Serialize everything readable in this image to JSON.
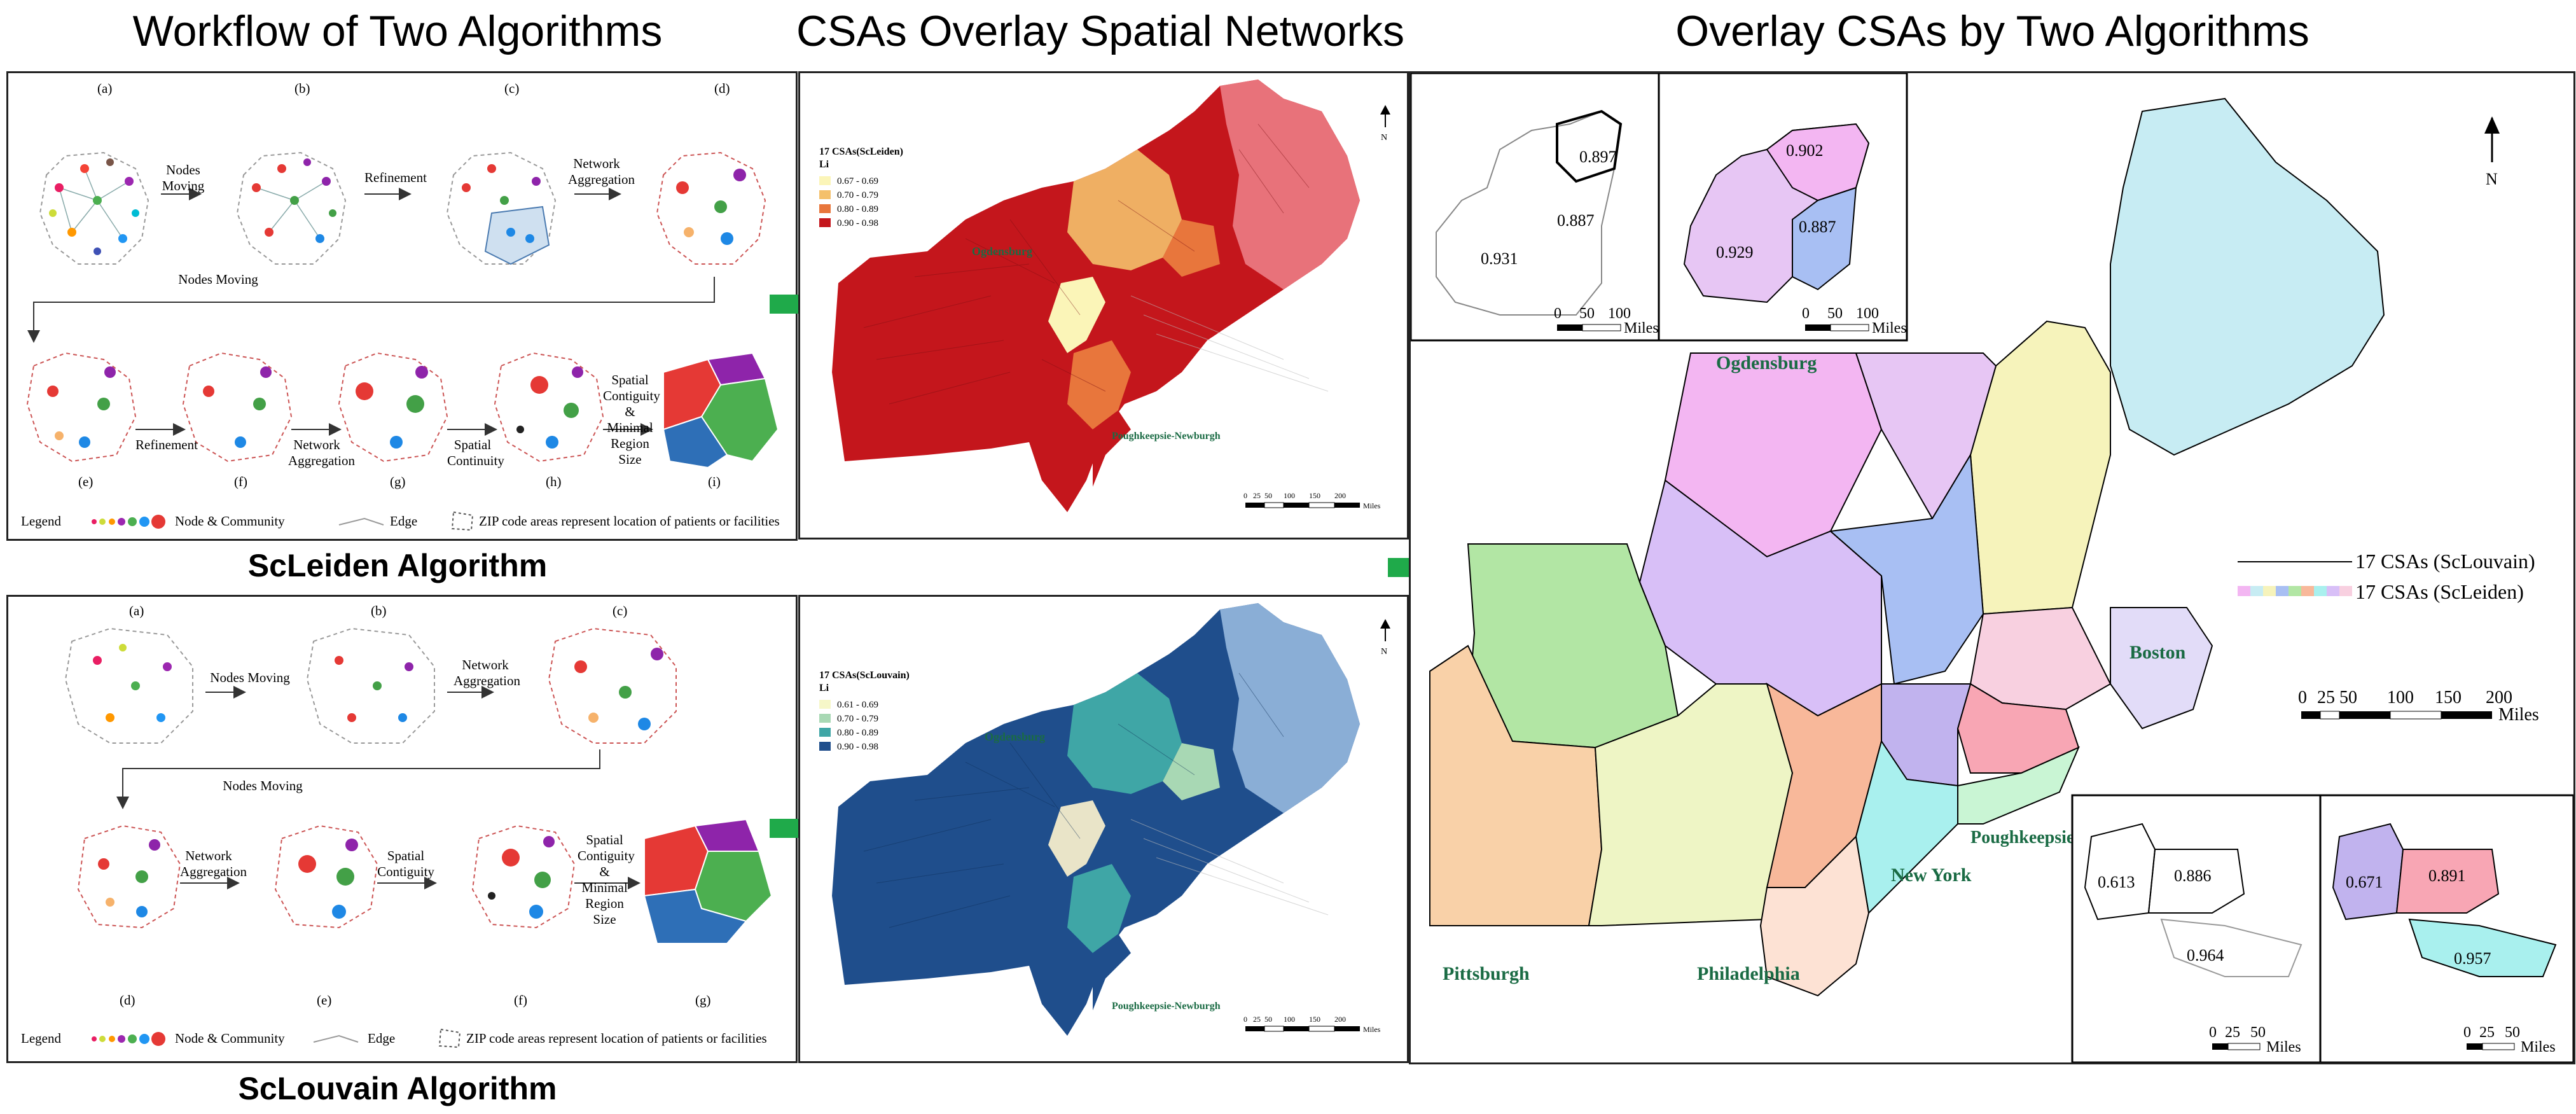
{
  "titles": {
    "workflow": "Workflow of Two Algorithms",
    "networks": "CSAs Overlay Spatial Networks",
    "overlay": "Overlay CSAs by Two Algorithms"
  },
  "algorithms": {
    "scleiden": "ScLeiden Algorithm",
    "sclouvain": "ScLouvain Algorithm"
  },
  "workflow_top": {
    "panels": [
      "(a)",
      "(b)",
      "(c)",
      "(d)",
      "(e)",
      "(f)",
      "(g)",
      "(h)",
      "(i)"
    ],
    "steps": {
      "nodes_moving_1": "Nodes Moving",
      "refinement_1": "Refinement",
      "network_aggregation_1": "Network Aggregation",
      "nodes_moving_2": "Nodes Moving",
      "refinement_2": "Refinement",
      "network_aggregation_2": "Network Aggregation",
      "spatial_continuity": "Spatial Continuity",
      "spatial_contiguity": "Spatial Contiguity & Minimal Region Size"
    }
  },
  "workflow_bottom": {
    "panels": [
      "(a)",
      "(b)",
      "(c)",
      "(d)",
      "(e)",
      "(f)",
      "(g)"
    ],
    "steps": {
      "nodes_moving_1": "Nodes Moving",
      "network_aggregation_1": "Network Aggregation",
      "nodes_moving_2": "Nodes Moving",
      "network_aggregation_2": "Network Aggregation",
      "spatial_contiguity_1": "Spatial Contiguity",
      "spatial_contiguity_2": "Spatial Contiguity & Minimal Region Size"
    }
  },
  "legend": {
    "label": "Legend",
    "node": "Node & Community",
    "edge": "Edge",
    "zip": "ZIP code areas represent location of patients or facilities"
  },
  "map_scleiden": {
    "legend_title": "17 CSAs(ScLeiden)",
    "legend_sub": "Li",
    "classes": [
      {
        "label": "0.67 - 0.69",
        "color": "#fbf5b8"
      },
      {
        "label": "0.70 - 0.79",
        "color": "#f4c06b"
      },
      {
        "label": "0.80 - 0.89",
        "color": "#e8763c"
      },
      {
        "label": "0.90 - 0.98",
        "color": "#c4161c"
      }
    ],
    "city_north": "Ogdensburg",
    "city_south": "Poughkeepsie-Newburgh",
    "scale_ticks": [
      "0",
      "25",
      "50",
      "100",
      "150",
      "200"
    ],
    "scale_unit": "Miles",
    "north": "N"
  },
  "map_sclouvain": {
    "legend_title": "17 CSAs(ScLouvain)",
    "legend_sub": "Li",
    "classes": [
      {
        "label": "0.61 - 0.69",
        "color": "#f6f7c8"
      },
      {
        "label": "0.70 - 0.79",
        "color": "#a8d8b4"
      },
      {
        "label": "0.80 - 0.89",
        "color": "#3fa6a6"
      },
      {
        "label": "0.90 - 0.98",
        "color": "#1f4e8c"
      }
    ],
    "city_north": "Ogdensburg",
    "city_south": "Poughkeepsie-Newburgh",
    "scale_ticks": [
      "0",
      "25",
      "50",
      "100",
      "150",
      "200"
    ],
    "scale_unit": "Miles",
    "north": "N"
  },
  "overlay": {
    "cities": {
      "ogdensburg": "Ogdensburg",
      "boston": "Boston",
      "pittsburgh": "Pittsburgh",
      "philadelphia": "Philadelphia",
      "new_york": "New York",
      "poughkeepsie": "Poughkeepsie- Newburgh"
    },
    "legend_line": "17 CSAs (ScLouvain)",
    "legend_fill": "17 CSAs (ScLeiden)",
    "scale_ticks": [
      "0",
      "25",
      "50",
      "100",
      "150",
      "200"
    ],
    "scale_unit": "Miles",
    "north": "N",
    "inset_tl_left": {
      "values": [
        "0.897",
        "0.887",
        "0.931"
      ],
      "scale": [
        "0",
        "50",
        "100"
      ],
      "unit": "Miles"
    },
    "inset_tl_right": {
      "values": [
        "0.902",
        "0.887",
        "0.929"
      ],
      "scale": [
        "0",
        "50",
        "100"
      ],
      "unit": "Miles"
    },
    "inset_br_left": {
      "values": [
        "0.613",
        "0.886",
        "0.964"
      ],
      "scale": [
        "0",
        "25",
        "50"
      ],
      "unit": "Miles"
    },
    "inset_br_right": {
      "values": [
        "0.671",
        "0.891",
        "0.957"
      ],
      "scale": [
        "0",
        "25",
        "50"
      ],
      "unit": "Miles"
    }
  },
  "colors": {
    "arrow": "#1faa4a",
    "city_label": "#1a6b44"
  }
}
